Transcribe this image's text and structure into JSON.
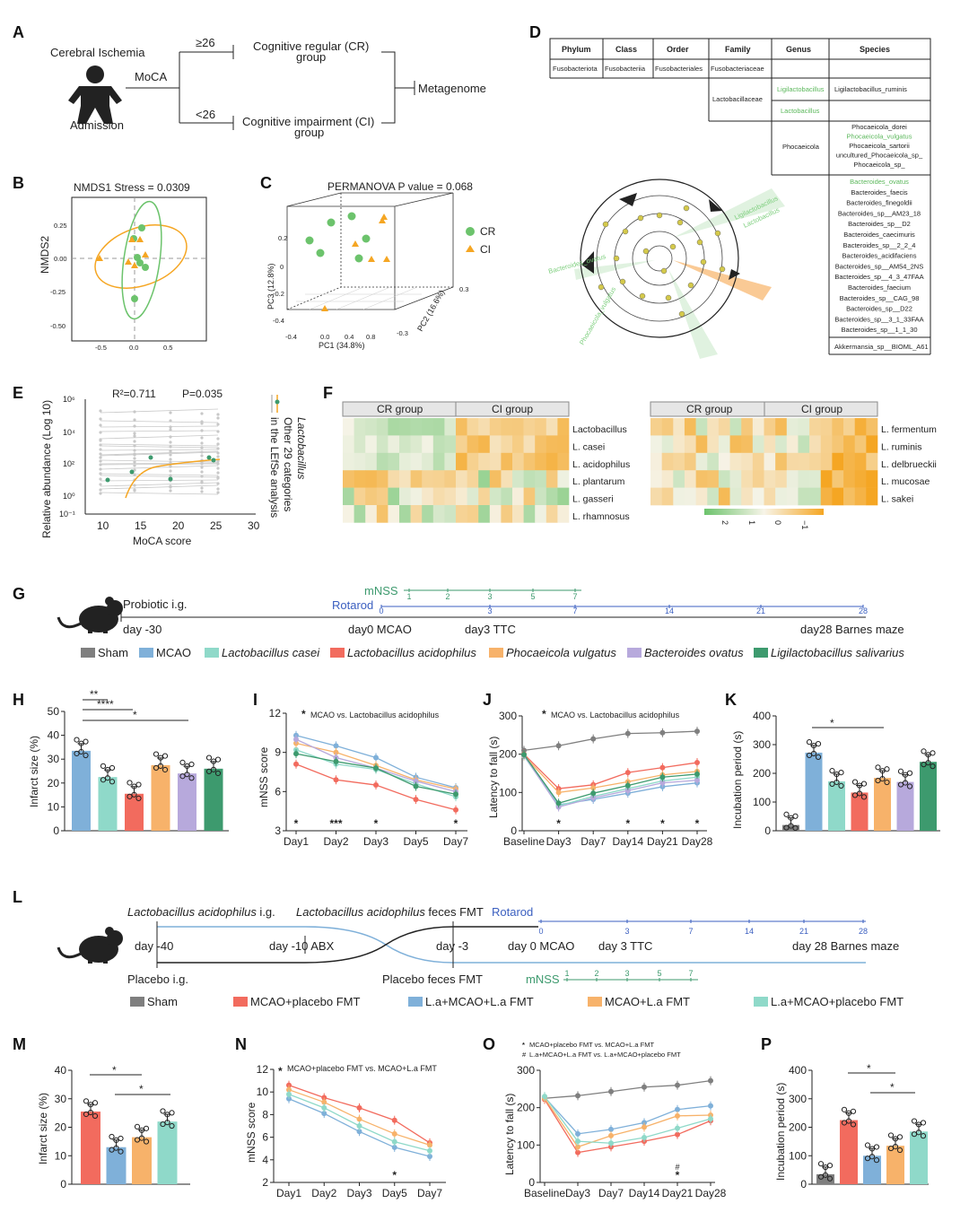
{
  "colors": {
    "sham": "#7f7f7f",
    "mcao": "#7fb0d9",
    "casei": "#8fd9c9",
    "acid": "#f26b5e",
    "phoc": "#f7b26a",
    "bact": "#b7a9dc",
    "ligi": "#3d9a6e",
    "cr": "#6cc36c",
    "ci": "#f5a623",
    "green_light": "#5cb85c",
    "rotarod": "#3b5fc0",
    "mnss": "#3d9a6e"
  },
  "panel_a": {
    "label": "A",
    "cohort": "Cerebral Ischemia",
    "admission": "Admission",
    "moca": "MoCA",
    "high_threshold": "≥26",
    "low_threshold": "<26",
    "cr_line1": "Cognitive regular (CR)",
    "cr_line2": "group",
    "ci_line1": "Cognitive impairment (CI)",
    "ci_line2": "group",
    "outcome": "Metagenome"
  },
  "panel_b": {
    "label": "B",
    "title": "NMDS1  Stress = 0.0309",
    "ylabel": "NMDS2",
    "yticks": [
      "0.25",
      "0.00",
      "-0.25",
      "-0.50"
    ],
    "xticks": [
      "-0.5",
      "0.0",
      "0.5"
    ]
  },
  "panel_c": {
    "label": "C",
    "title": "PERMANOVA P value = 0.068",
    "legend_cr": "CR",
    "legend_ci": "CI",
    "xlabel": "PC1 (34.8%)",
    "ylabel": "PC3 (12.8%)",
    "zlabel": "PC2 (16.6%)",
    "xticks": [
      "-0.4",
      "0.0",
      "0.4",
      "0.8"
    ],
    "yticks": [
      "0.2",
      "0",
      "-0.2",
      "-0.4"
    ],
    "zticks": [
      "0.3",
      "-0.3"
    ]
  },
  "panel_d": {
    "label": "D",
    "headers": [
      "Phylum",
      "Class",
      "Order",
      "Family",
      "Genus",
      "Species"
    ],
    "fuso": [
      "Fusobacteriota",
      "Fusobacteriia",
      "Fusobacteriales",
      "Fusobacteriaceae"
    ],
    "family_lacto": "Lactobacillaceae",
    "genus_ligi": "Ligilactobacillus",
    "species_ligi": "Ligilactobacillus_ruminis",
    "genus_lacto": "Lactobacillus",
    "genus_phoc": "Phocaeicola",
    "phoc_species": [
      "Phocaeicola_dorei",
      "Phocaeicola_vulgatus",
      "Phocaeicola_sartorii",
      "uncultured_Phocaeicola_sp_",
      "Phocaeicola_sp_"
    ],
    "bact_species": [
      "Bacteroides_ovatus",
      "Bacteroides_faecis",
      "Bacteroides_finegoldii",
      "Bacteroides_sp__AM23_18",
      "Bacteroides_sp__D2",
      "Bacteroides_caecimuris",
      "Bacteroides_sp__2_2_4",
      "Bacteroides_acidifaciens",
      "Bacteroides_sp__AM54_2NS",
      "Bacteroides_sp__4_3_47FAA",
      "Bacteroides_faecium",
      "Bacteroides_sp__CAG_98",
      "Bacteroides_sp__D22",
      "Bacteroides_sp__3_1_33FAA",
      "Bacteroides_sp__1_1_30"
    ],
    "akk": "Akkermansia_sp__BIOML_A61",
    "clado_ligi": "Ligilactobacillus",
    "clado_lacto": "Lactobacillus",
    "clado_bact": "Bacteroides_ovatus",
    "clado_phoc": "Phocaeicola_vulgatus"
  },
  "panel_e": {
    "label": "E",
    "r2": "R²=0.711",
    "p": "P=0.035",
    "ylabel": "Relative abundance (Log 10)",
    "xlabel": "MoCA score",
    "yticks": [
      "10⁶",
      "10⁴",
      "10²",
      "10⁰",
      "10⁻¹"
    ],
    "xticks": [
      "10",
      "15",
      "20",
      "25",
      "30"
    ],
    "legend_lacto": "Lactobacillus",
    "legend_other1": "Other 29 categories",
    "legend_other2": "in the LEfSe analysis"
  },
  "panel_f": {
    "label": "F",
    "cr_group": "CR group",
    "ci_group": "CI group",
    "left_rows": [
      "Lactobacillus",
      "L. casei",
      "L. acidophilus",
      "L. plantarum",
      "L. gasseri",
      "L. rhamnosus"
    ],
    "right_rows": [
      "L. fermentum",
      "L. ruminis",
      "L. delbrueckii",
      "L. mucosae",
      "L. sakei"
    ],
    "scale_ticks": [
      "2",
      "1",
      "0",
      "−1"
    ]
  },
  "panel_g": {
    "label": "G",
    "probiotic": "Probiotic i.g.",
    "day_m30": "day -30",
    "day0": "day0 MCAO",
    "day3": "day3 TTC",
    "day28": "day28 Barnes maze",
    "rotarod": "Rotarod",
    "mnss": "mNSS",
    "mnss_ticks": [
      "1",
      "2",
      "3",
      "5",
      "7"
    ],
    "rot_ticks": [
      "0",
      "3",
      "7",
      "14",
      "21",
      "28"
    ],
    "legend": [
      "Sham",
      "MCAO",
      "Lactobacillus casei",
      "Lactobacillus acidophilus",
      "Phocaeicola vulgatus",
      "Bacteroides ovatus",
      "Ligilactobacillus salivarius"
    ]
  },
  "panel_h": {
    "label": "H",
    "ylabel": "Infarct size (%)",
    "yticks": [
      "50",
      "40",
      "30",
      "20",
      "10",
      "0"
    ],
    "values": [
      33.5,
      22.5,
      15.5,
      27.5,
      24,
      26
    ],
    "ymax": 50,
    "sig": [
      "**",
      "****",
      "*"
    ]
  },
  "panel_i": {
    "label": "I",
    "legend": "MCAO vs. Lactobacillus acidophilus",
    "ylabel": "mNSS score",
    "yticks": [
      "12",
      "9",
      "6",
      "3"
    ],
    "xticks": [
      "Day1",
      "Day2",
      "Day3",
      "Day5",
      "Day7"
    ],
    "stars": [
      "*",
      "***",
      "*",
      "",
      "*"
    ],
    "series": [
      {
        "color": "mcao",
        "values": [
          10.3,
          9.5,
          8.6,
          7.1,
          6.3
        ]
      },
      {
        "color": "casei",
        "values": [
          9.2,
          8.1,
          7.7,
          6.6,
          5.6
        ]
      },
      {
        "color": "acid",
        "values": [
          8.1,
          6.9,
          6.5,
          5.4,
          4.6
        ]
      },
      {
        "color": "phoc",
        "values": [
          9.7,
          9.0,
          8.0,
          6.9,
          6.2
        ]
      },
      {
        "color": "bact",
        "values": [
          10.0,
          8.6,
          7.8,
          6.8,
          6.0
        ]
      },
      {
        "color": "ligi",
        "values": [
          8.9,
          8.3,
          7.8,
          6.4,
          5.8
        ]
      }
    ]
  },
  "panel_j": {
    "label": "J",
    "legend": "MCAO vs. Lactobacillus acidophilus",
    "ylabel": "Latency to fall (s)",
    "yticks": [
      "300",
      "200",
      "100",
      "0"
    ],
    "xticks": [
      "Baseline",
      "Day3",
      "Day7",
      "Day14",
      "Day21",
      "Day28"
    ],
    "stars": [
      "",
      "*",
      "",
      "*",
      "*",
      "*"
    ],
    "series": [
      {
        "color": "sham",
        "values": [
          210,
          222,
          240,
          254,
          256,
          260
        ]
      },
      {
        "color": "mcao",
        "values": [
          198,
          68,
          82,
          98,
          115,
          125
        ]
      },
      {
        "color": "casei",
        "values": [
          195,
          65,
          90,
          110,
          130,
          140
        ]
      },
      {
        "color": "acid",
        "values": [
          200,
          110,
          120,
          152,
          165,
          178
        ]
      },
      {
        "color": "phoc",
        "values": [
          196,
          100,
          112,
          128,
          146,
          155
        ]
      },
      {
        "color": "bact",
        "values": [
          197,
          62,
          86,
          105,
          125,
          132
        ]
      },
      {
        "color": "ligi",
        "values": [
          199,
          72,
          98,
          118,
          140,
          148
        ]
      }
    ]
  },
  "panel_k": {
    "label": "K",
    "ylabel": "Incubation period (s)",
    "yticks": [
      "400",
      "300",
      "200",
      "100",
      "0"
    ],
    "values": [
      20,
      272,
      172,
      133,
      184,
      170,
      240
    ],
    "ymax": 400,
    "sig": "*"
  },
  "panel_l": {
    "label": "L",
    "la_ig": "Lactobacillus acidophilus",
    "la_ig_suffix": " i.g.",
    "la_fmt": "Lactobacillus acidophilus",
    "la_fmt_suffix": " feces FMT",
    "rotarod": "Rotarod",
    "day_m40": "day -40",
    "day_m10": "day -10 ABX",
    "day_m3": "day -3",
    "day0": "day 0 MCAO",
    "day3": "day 3 TTC",
    "day28": "day 28 Barnes maze",
    "placebo_ig": "Placebo i.g.",
    "placebo_fmt": "Placebo feces FMT",
    "mnss": "mNSS",
    "mnss_ticks": [
      "1",
      "2",
      "3",
      "5",
      "7"
    ],
    "rot_ticks": [
      "0",
      "3",
      "7",
      "14",
      "21",
      "28"
    ],
    "legend": [
      "Sham",
      "MCAO+placebo FMT",
      "L.a+MCAO+L.a FMT",
      "MCAO+L.a FMT",
      "L.a+MCAO+placebo FMT"
    ]
  },
  "panel_m": {
    "label": "M",
    "ylabel": "Infarct size (%)",
    "yticks": [
      "40",
      "30",
      "20",
      "10",
      "0"
    ],
    "values": [
      25.5,
      13,
      16.5,
      22
    ],
    "ymax": 40,
    "sig": [
      "*",
      "*"
    ]
  },
  "panel_n": {
    "label": "N",
    "legend": "MCAO+placebo FMT vs. MCAO+L.a FMT",
    "ylabel": "mNSS score",
    "yticks": [
      "12",
      "10",
      "8",
      "6",
      "4",
      "2"
    ],
    "xticks": [
      "Day1",
      "Day2",
      "Day3",
      "Day5",
      "Day7"
    ],
    "stars": [
      "",
      "",
      "",
      "*",
      ""
    ],
    "series": [
      {
        "color": "acid",
        "values": [
          10.6,
          9.5,
          8.6,
          7.5,
          5.5
        ]
      },
      {
        "color": "mcao",
        "values": [
          9.4,
          8.1,
          6.5,
          5.1,
          4.3
        ]
      },
      {
        "color": "phoc",
        "values": [
          10.2,
          9.1,
          7.6,
          6.3,
          5.3
        ]
      },
      {
        "color": "casei",
        "values": [
          9.8,
          8.6,
          7.0,
          5.6,
          4.8
        ]
      }
    ]
  },
  "panel_o": {
    "label": "O",
    "legend1": "MCAO+placebo FMT vs. MCAO+L.a FMT",
    "legend2": "L.a+MCAO+L.a FMT vs. L.a+MCAO+placebo FMT",
    "ylabel": "Latency to fall (s)",
    "yticks": [
      "300",
      "200",
      "100",
      "0"
    ],
    "xticks": [
      "Baseline",
      "Day3",
      "Day7",
      "Day14",
      "Day21",
      "Day28"
    ],
    "stars": [
      "",
      "",
      "",
      "",
      "*",
      ""
    ],
    "hashes": [
      "",
      "",
      "",
      "",
      "#",
      ""
    ],
    "series": [
      {
        "color": "sham",
        "values": [
          225,
          232,
          243,
          255,
          260,
          272
        ]
      },
      {
        "color": "acid",
        "values": [
          222,
          80,
          95,
          110,
          128,
          165
        ]
      },
      {
        "color": "mcao",
        "values": [
          228,
          130,
          142,
          160,
          195,
          205
        ]
      },
      {
        "color": "phoc",
        "values": [
          225,
          95,
          125,
          148,
          178,
          180
        ]
      },
      {
        "color": "casei",
        "values": [
          230,
          110,
          105,
          120,
          145,
          170
        ]
      }
    ]
  },
  "panel_p": {
    "label": "P",
    "ylabel": "Incubation period (s)",
    "yticks": [
      "400",
      "300",
      "200",
      "100",
      "0"
    ],
    "values": [
      35,
      225,
      100,
      135,
      185
    ],
    "ymax": 400,
    "sig": [
      "*",
      "*"
    ]
  }
}
